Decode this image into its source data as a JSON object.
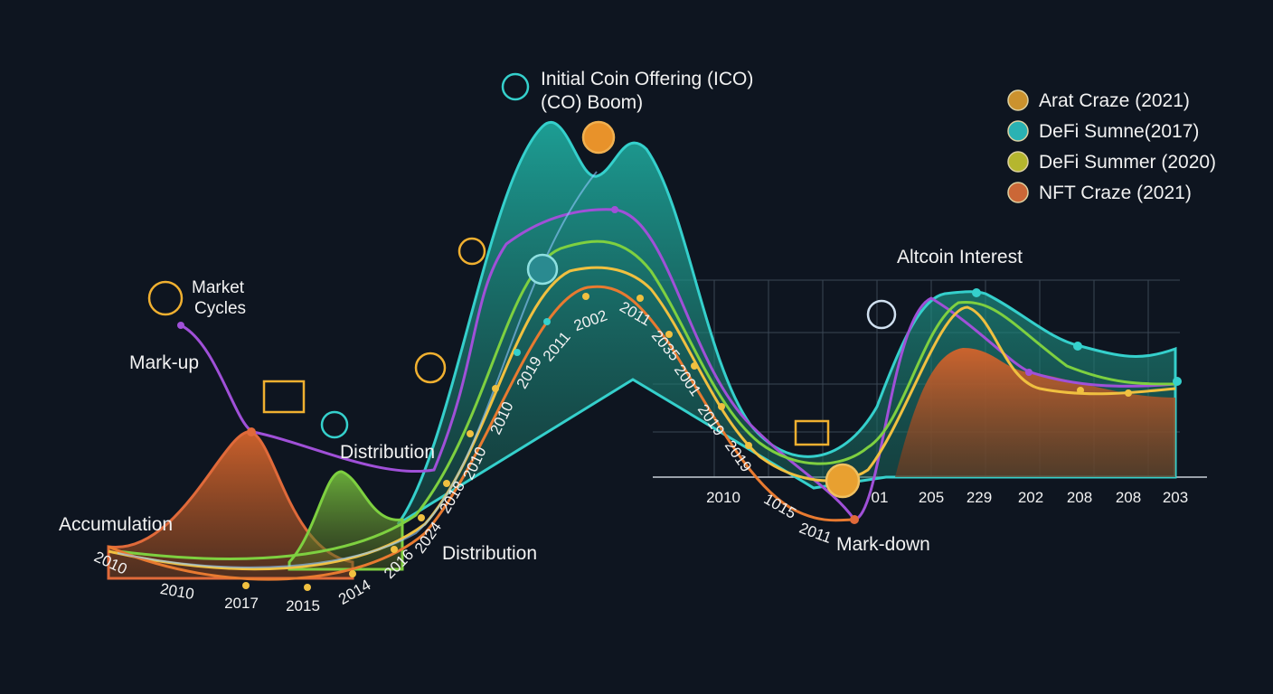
{
  "title": {
    "lines": [
      "Initial Coin Offering (ICO)",
      "(CO) Boom)"
    ]
  },
  "legend": [
    {
      "label": "Arat Craze (2021)",
      "color": "#e0a030"
    },
    {
      "label": "DeFi Sumne(2017)",
      "color": "#2ec4c4"
    },
    {
      "label": "DeFi Summer (2020)",
      "color": "#c8c830"
    },
    {
      "label": "NFT Craze (2021)",
      "color": "#e0703a"
    }
  ],
  "market_cycles": {
    "lines": [
      "Market",
      "Cycles"
    ]
  },
  "phases": {
    "mark_up": "Mark-up",
    "accumulation": "Accumulation",
    "distribution_upper": "Distribution",
    "distribution_lower": "Distribution",
    "mark_down": "Mark-down"
  },
  "altcoin_panel": {
    "title": "Altcoin Interest",
    "axis_labels": [
      "2010",
      "01",
      "205",
      "229",
      "202",
      "208",
      "208",
      "203"
    ]
  },
  "curve_labels": [
    "2010",
    "2010",
    "2017",
    "2015",
    "2014",
    "2016",
    "2024",
    "2018",
    "2010",
    "2010",
    "2019",
    "2011",
    "2002",
    "2011",
    "2035",
    "2001",
    "2019",
    "2019",
    "1015",
    "2011"
  ]
}
